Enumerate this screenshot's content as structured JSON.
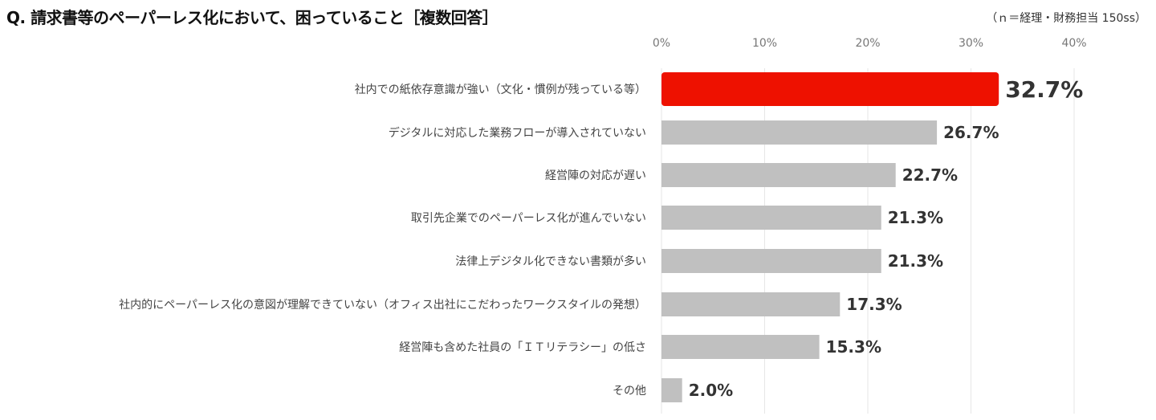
{
  "chart_data": {
    "type": "bar",
    "orientation": "horizontal",
    "title": "Q. 請求書等のペーパーレス化において、困っていること［複数回答］",
    "note": "（ｎ＝経理・財務担当 150ss）",
    "categories": [
      "社内での紙依存意識が強い（文化・慣例が残っている等）",
      "デジタルに対応した業務フローが導入されていない",
      "経営陣の対応が遅い",
      "取引先企業でのペーパーレス化が進んでいない",
      "法律上デジタル化できない書類が多い",
      "社内的にペーパーレス化の意図が理解できていない（オフィス出社にこだわったワークスタイルの発想）",
      "経営陣も含めた社員の「ＩＴリテラシー」の低さ",
      "その他"
    ],
    "values": [
      32.7,
      26.7,
      22.7,
      21.3,
      21.3,
      17.3,
      15.3,
      2.0
    ],
    "value_labels": [
      "32.7%",
      "26.7%",
      "22.7%",
      "21.3%",
      "21.3%",
      "17.3%",
      "15.3%",
      "2.0%"
    ],
    "xlim": [
      0,
      40
    ],
    "xticks": [
      "0%",
      "10%",
      "20%",
      "30%",
      "40%"
    ],
    "xtick_values": [
      0,
      10,
      20,
      30,
      40
    ],
    "grid": true,
    "colors": {
      "highlight": "#ee1100",
      "default": "#c0c0c0",
      "grid": "#e6e6e6"
    }
  }
}
